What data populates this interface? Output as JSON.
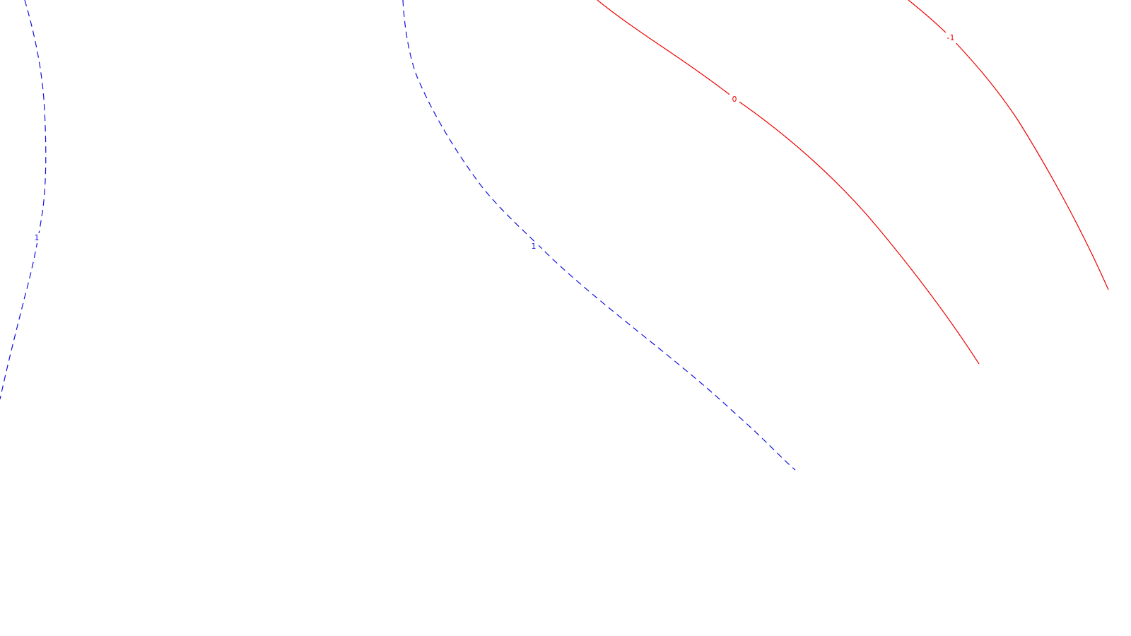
{
  "contours": [
    {
      "id": "blue-left",
      "value": "1",
      "color": "#1010e0",
      "style": "dashed",
      "label": "1"
    },
    {
      "id": "blue-mid",
      "value": "1",
      "color": "#1010e0",
      "style": "dashed",
      "label": "1"
    },
    {
      "id": "red-mid",
      "value": "0",
      "color": "#ee0000",
      "style": "solid",
      "label": "0"
    },
    {
      "id": "red-right",
      "value": "-1",
      "color": "#ee0000",
      "style": "solid",
      "label": "-1"
    }
  ]
}
